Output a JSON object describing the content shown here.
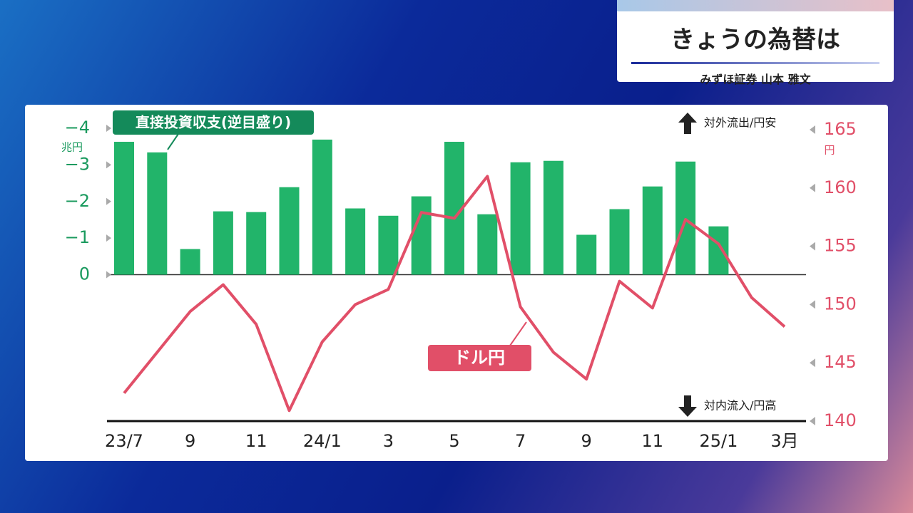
{
  "header": {
    "title": "きょうの為替は",
    "subtitle": "みずほ証券 山本 雅文"
  },
  "chart_data": {
    "type": "combo",
    "categories": [
      "23/7",
      null,
      "9",
      null,
      "11",
      null,
      "24/1",
      null,
      "3",
      null,
      "5",
      null,
      "7",
      null,
      "9",
      null,
      "11",
      null,
      "25/1",
      null,
      "3月"
    ],
    "series": [
      {
        "name": "直接投資収支(逆目盛り)",
        "type": "bar",
        "color": "#22b46a",
        "values": [
          -3.63,
          -3.34,
          -0.7,
          -1.73,
          -1.71,
          -2.39,
          -3.69,
          -1.81,
          -1.61,
          -2.14,
          -3.63,
          -1.65,
          -3.07,
          -3.11,
          -1.09,
          -1.79,
          -2.41,
          -3.09,
          -1.32,
          null,
          null
        ]
      },
      {
        "name": "ドル円",
        "type": "line",
        "axis": "y2",
        "color": "#e14f68",
        "values": [
          142.4,
          145.9,
          149.4,
          151.7,
          148.3,
          140.9,
          146.8,
          150.0,
          151.3,
          157.9,
          157.4,
          161.0,
          149.8,
          145.9,
          143.6,
          152.0,
          149.7,
          157.3,
          155.2,
          150.6,
          148.1
        ]
      }
    ],
    "y_unit": "兆円",
    "y2_unit": "円",
    "ylim": [
      4,
      -4
    ],
    "yticks": [
      {
        "value": -4,
        "label": "−4"
      },
      {
        "value": -3,
        "label": "−3"
      },
      {
        "value": -2,
        "label": "−2"
      },
      {
        "value": -1,
        "label": "−1"
      },
      0
    ],
    "y2lim": [
      140,
      165
    ],
    "y2ticks": [
      140,
      145,
      150,
      155,
      160,
      165
    ],
    "annotations": [
      "対外流出/円安",
      "対内流入/円高"
    ],
    "grid": false
  }
}
